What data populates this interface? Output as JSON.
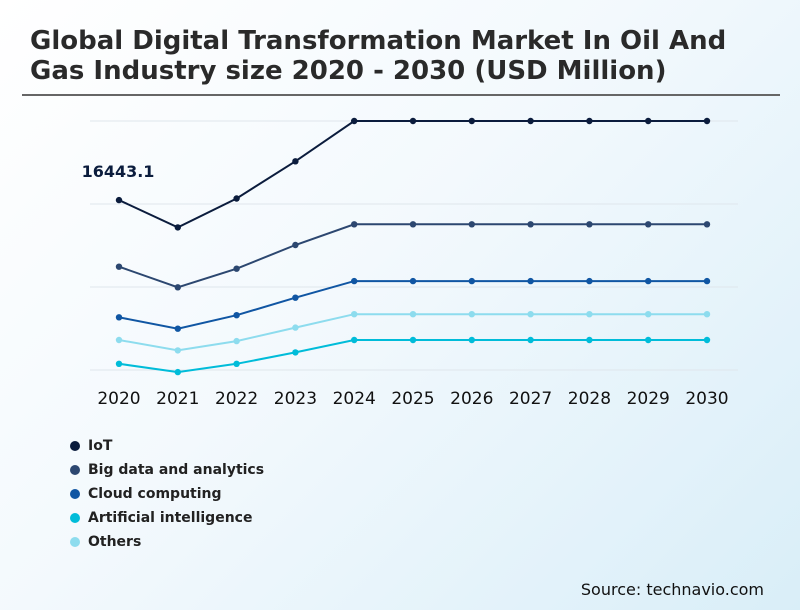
{
  "title": "Global Digital Transformation Market In Oil And Gas Industry size 2020 - 2030 (USD Million)",
  "source": "Source: technavio.com",
  "chart_data": {
    "type": "line",
    "title": "Global Digital Transformation Market In Oil And Gas Industry size 2020 - 2030 (USD Million)",
    "x": [
      "2020",
      "2021",
      "2022",
      "2023",
      "2024",
      "2025",
      "2026",
      "2027",
      "2028",
      "2029",
      "2030"
    ],
    "annotation": "16443.1",
    "grid": true,
    "legend_position": "bottom-left",
    "ylim": [
      0,
      32000
    ],
    "series": [
      {
        "name": "IoT",
        "color": "#0b1c3d",
        "values": [
          16443.1,
          13800,
          16600,
          20200,
          24100,
          24100,
          24100,
          24100,
          24100,
          24100,
          24100
        ]
      },
      {
        "name": "Big data and analytics",
        "color": "#2c4770",
        "values": [
          10000,
          8000,
          9800,
          12100,
          14100,
          14100,
          14100,
          14100,
          14100,
          14100,
          14100
        ]
      },
      {
        "name": "Cloud computing",
        "color": "#1056a3",
        "values": [
          5100,
          4000,
          5300,
          7000,
          8600,
          8600,
          8600,
          8600,
          8600,
          8600,
          8600
        ]
      },
      {
        "name": "Artificial intelligence",
        "color": "#00bcd9",
        "values": [
          600,
          -200,
          600,
          1700,
          2900,
          2900,
          2900,
          2900,
          2900,
          2900,
          2900
        ]
      },
      {
        "name": "Others",
        "color": "#8ddcee",
        "values": [
          2900,
          1900,
          2800,
          4100,
          5400,
          5400,
          5400,
          5400,
          5400,
          5400,
          5400
        ]
      }
    ]
  }
}
